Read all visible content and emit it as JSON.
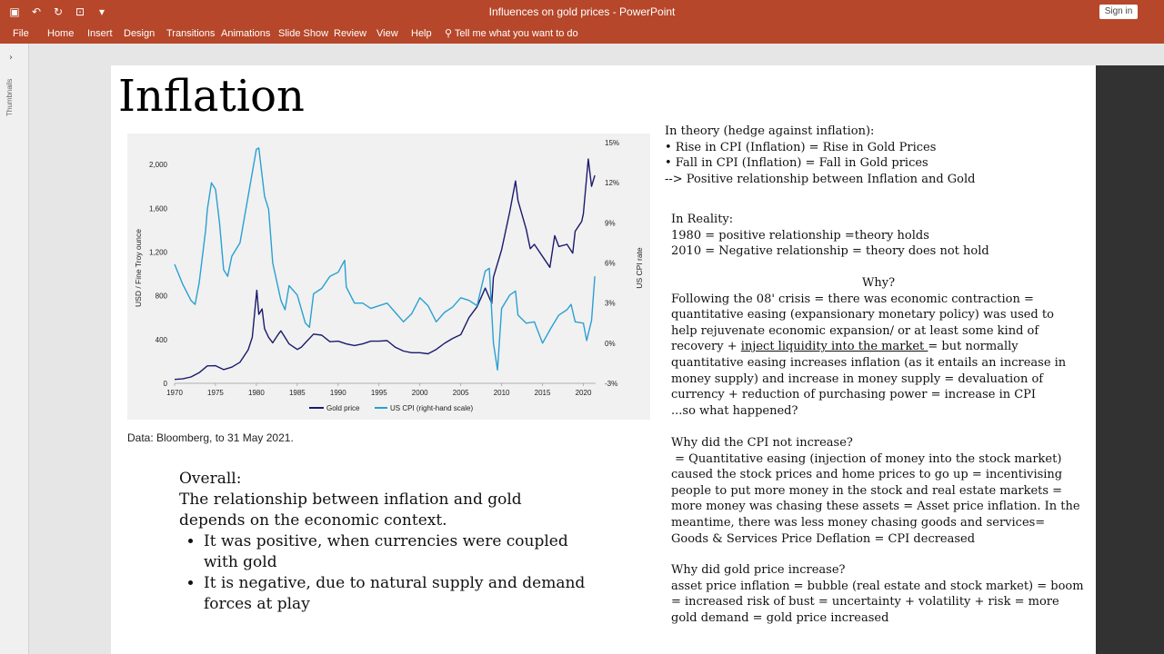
{
  "titlebar": {
    "title": "Influences on gold prices - PowerPoint",
    "sign_in": "Sign in"
  },
  "ribbon": {
    "tabs": [
      "File",
      "Home",
      "Insert",
      "Design",
      "Transitions",
      "Animations",
      "Slide Show",
      "Review",
      "View",
      "Help"
    ],
    "tell_me": "Tell me what you want to do"
  },
  "sidebar": {
    "thumbnails_label": "Thumbnails"
  },
  "slide": {
    "title": "Inflation",
    "source": "Data: Bloomberg, to 31 May 2021.",
    "overall": {
      "heading": "Overall:",
      "lines": [
        "The relationship between inflation and gold",
        "depends on the economic context."
      ],
      "bullets": [
        "It was positive, when currencies were coupled with gold",
        "It is negative, due to natural supply and demand forces at play"
      ]
    },
    "theory": {
      "heading": "In theory (hedge against inflation):",
      "lines": [
        "• Rise in CPI (Inflation) = Rise in Gold Prices",
        "• Fall in CPI (Inflation) = Fall in Gold prices",
        "--> Positive relationship between Inflation and Gold"
      ]
    },
    "reality": {
      "heading": "In Reality:",
      "lines": [
        "1980 = positive relationship =theory holds",
        "2010 = Negative relationship = theory does not hold"
      ]
    },
    "why": {
      "heading": "Why?",
      "l1": "Following the 08' crisis = there was economic contraction =",
      "l2": "quantitative easing (expansionary monetary policy) was used to",
      "l3": "help rejuvenate economic expansion/ or at least some kind of",
      "l4_a": "recovery + ",
      "l4_b": "inject liquidity into the market ",
      "l4_c": "= but normally",
      "l5": "quantitative easing increases inflation (as it entails an increase in",
      "l6": "money supply) and increase in money supply = devaluation of",
      "l7": "currency + reduction of purchasing power = increase in CPI",
      "l8": "...so what happened?"
    },
    "cpi_question": {
      "heading": "Why did the CPI not increase?",
      "lines": [
        " = Quantitative easing (injection of money into the stock market)",
        "caused the stock prices and home prices to go up = incentivising",
        "people to put more money in the stock and real estate markets =",
        "more money was chasing these assets = Asset price inflation. In the",
        "meantime, there was less money chasing goods and services=",
        "Goods & Services Price Deflation = CPI decreased"
      ]
    },
    "gold_question": {
      "heading": "Why did gold price increase?",
      "lines": [
        "asset price inflation = bubble (real estate and stock market) = boom",
        "= increased risk of bust = uncertainty + volatility + risk = more",
        "gold demand = gold price increased"
      ]
    }
  },
  "chart_data": {
    "type": "line",
    "ylabel": "USD / Fine Troy ounce",
    "y2label": "US CPI rate",
    "x_ticks": [
      "1970",
      "1975",
      "1980",
      "1985",
      "1990",
      "1995",
      "2000",
      "2005",
      "2010",
      "2015",
      "2020"
    ],
    "y_ticks": [
      "0",
      "400",
      "800",
      "1,200",
      "1,600",
      "2,000"
    ],
    "y2_ticks": [
      "-3%",
      "0%",
      "3%",
      "6%",
      "9%",
      "12%",
      "15%"
    ],
    "ylim": [
      0,
      2200
    ],
    "y2lim": [
      -3,
      15
    ],
    "xlim": [
      1970,
      2021.5
    ],
    "series": [
      {
        "name": "Gold price",
        "color": "#1a1a6e",
        "points": [
          [
            1970,
            36
          ],
          [
            1971,
            41
          ],
          [
            1972,
            58
          ],
          [
            1973,
            97
          ],
          [
            1974,
            159
          ],
          [
            1975,
            161
          ],
          [
            1976,
            125
          ],
          [
            1977,
            148
          ],
          [
            1978,
            193
          ],
          [
            1979,
            306
          ],
          [
            1979.5,
            420
          ],
          [
            1980.05,
            850
          ],
          [
            1980.3,
            630
          ],
          [
            1980.7,
            680
          ],
          [
            1981,
            500
          ],
          [
            1981.5,
            420
          ],
          [
            1982,
            370
          ],
          [
            1982.7,
            450
          ],
          [
            1983,
            480
          ],
          [
            1983.5,
            420
          ],
          [
            1984,
            360
          ],
          [
            1985,
            310
          ],
          [
            1985.5,
            330
          ],
          [
            1986,
            370
          ],
          [
            1987,
            450
          ],
          [
            1988,
            440
          ],
          [
            1989,
            380
          ],
          [
            1990,
            385
          ],
          [
            1991,
            360
          ],
          [
            1992,
            345
          ],
          [
            1993,
            360
          ],
          [
            1994,
            385
          ],
          [
            1995,
            385
          ],
          [
            1996,
            390
          ],
          [
            1997,
            330
          ],
          [
            1998,
            295
          ],
          [
            1999,
            280
          ],
          [
            2000,
            280
          ],
          [
            2001,
            270
          ],
          [
            2002,
            310
          ],
          [
            2003,
            365
          ],
          [
            2004,
            410
          ],
          [
            2005,
            445
          ],
          [
            2006,
            600
          ],
          [
            2007,
            700
          ],
          [
            2008,
            870
          ],
          [
            2008.8,
            730
          ],
          [
            2009,
            970
          ],
          [
            2010,
            1220
          ],
          [
            2011,
            1570
          ],
          [
            2011.7,
            1850
          ],
          [
            2012,
            1670
          ],
          [
            2013,
            1410
          ],
          [
            2013.5,
            1230
          ],
          [
            2014,
            1270
          ],
          [
            2015,
            1160
          ],
          [
            2015.9,
            1060
          ],
          [
            2016.5,
            1350
          ],
          [
            2017,
            1250
          ],
          [
            2018,
            1270
          ],
          [
            2018.7,
            1190
          ],
          [
            2019,
            1390
          ],
          [
            2019.8,
            1480
          ],
          [
            2020,
            1550
          ],
          [
            2020.6,
            2050
          ],
          [
            2021,
            1800
          ],
          [
            2021.4,
            1900
          ]
        ]
      },
      {
        "name": "US CPI (right-hand scale)",
        "color": "#2aa0d2",
        "points": [
          [
            1970,
            5.9
          ],
          [
            1971,
            4.4
          ],
          [
            1972,
            3.2
          ],
          [
            1972.5,
            2.9
          ],
          [
            1973,
            4.5
          ],
          [
            1973.8,
            8.5
          ],
          [
            1974,
            10
          ],
          [
            1974.5,
            12
          ],
          [
            1975,
            11.5
          ],
          [
            1975.5,
            9
          ],
          [
            1976,
            5.5
          ],
          [
            1976.5,
            5
          ],
          [
            1977,
            6.5
          ],
          [
            1978,
            7.5
          ],
          [
            1979,
            11
          ],
          [
            1980,
            14.5
          ],
          [
            1980.3,
            14.6
          ],
          [
            1981,
            11
          ],
          [
            1981.5,
            10
          ],
          [
            1982,
            6
          ],
          [
            1983,
            3.2
          ],
          [
            1983.5,
            2.5
          ],
          [
            1984,
            4.3
          ],
          [
            1985,
            3.6
          ],
          [
            1986,
            1.5
          ],
          [
            1986.5,
            1.2
          ],
          [
            1987,
            3.7
          ],
          [
            1988,
            4.1
          ],
          [
            1989,
            5
          ],
          [
            1990,
            5.3
          ],
          [
            1990.8,
            6.2
          ],
          [
            1991,
            4.2
          ],
          [
            1992,
            3
          ],
          [
            1993,
            3
          ],
          [
            1994,
            2.6
          ],
          [
            1995,
            2.8
          ],
          [
            1996,
            3
          ],
          [
            1997,
            2.3
          ],
          [
            1998,
            1.6
          ],
          [
            1999,
            2.2
          ],
          [
            2000,
            3.4
          ],
          [
            2001,
            2.8
          ],
          [
            2002,
            1.6
          ],
          [
            2003,
            2.3
          ],
          [
            2004,
            2.7
          ],
          [
            2005,
            3.4
          ],
          [
            2006,
            3.2
          ],
          [
            2007,
            2.8
          ],
          [
            2008,
            5.4
          ],
          [
            2008.5,
            5.6
          ],
          [
            2009,
            0
          ],
          [
            2009.5,
            -2
          ],
          [
            2010,
            2.6
          ],
          [
            2011,
            3.6
          ],
          [
            2011.7,
            3.9
          ],
          [
            2012,
            2.1
          ],
          [
            2013,
            1.5
          ],
          [
            2014,
            1.6
          ],
          [
            2015,
            0
          ],
          [
            2016,
            1.1
          ],
          [
            2017,
            2.1
          ],
          [
            2018,
            2.5
          ],
          [
            2018.5,
            2.9
          ],
          [
            2019,
            1.6
          ],
          [
            2020,
            1.5
          ],
          [
            2020.4,
            0.2
          ],
          [
            2021,
            1.7
          ],
          [
            2021.4,
            5
          ]
        ]
      }
    ]
  }
}
